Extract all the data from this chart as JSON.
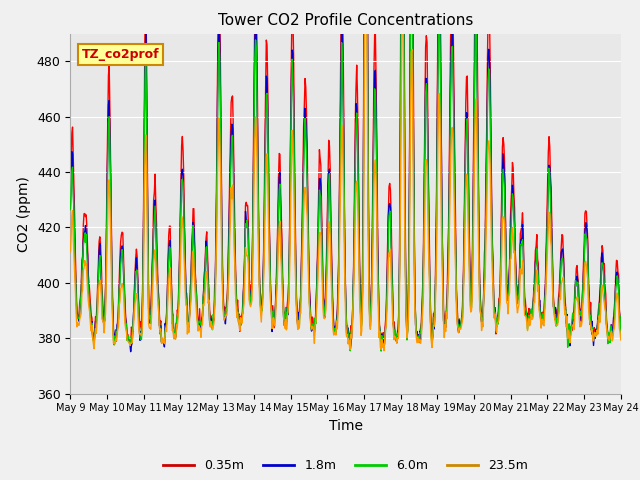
{
  "title": "Tower CO2 Profile Concentrations",
  "xlabel": "Time",
  "ylabel": "CO2 (ppm)",
  "ylim": [
    360,
    490
  ],
  "yticks": [
    360,
    380,
    400,
    420,
    440,
    460,
    480
  ],
  "xlim_days": [
    9,
    24
  ],
  "series": [
    "0.35m",
    "1.8m",
    "6.0m",
    "23.5m"
  ],
  "colors": [
    "#ff0000",
    "#0000cc",
    "#00cc00",
    "#ff9900"
  ],
  "plot_bg_color": "#e8e8e8",
  "fig_bg_color": "#f0f0f0",
  "annotation_text": "TZ_co2prof",
  "annotation_bg": "#ffff99",
  "annotation_border": "#cc8800",
  "annotation_text_color": "#cc0000",
  "grid_color": "#ffffff",
  "legend_colors": [
    "#cc0000",
    "#0000cc",
    "#00cc00",
    "#cc8800"
  ]
}
